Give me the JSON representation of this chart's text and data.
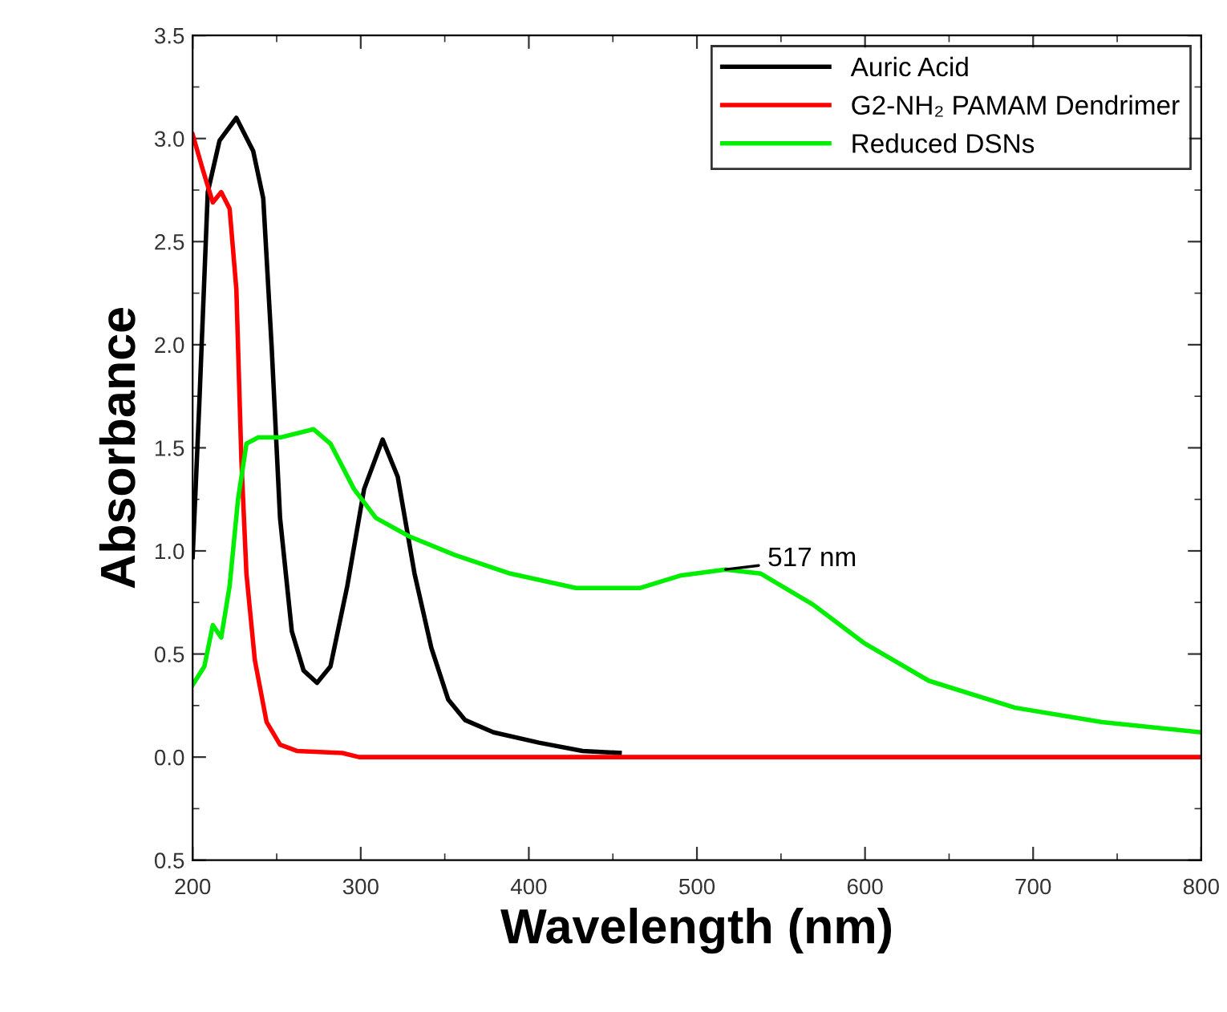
{
  "chart_data": {
    "type": "line",
    "xlabel": "Wavelength (nm)",
    "ylabel": "Absorbance",
    "xlim": [
      200,
      800
    ],
    "xticks": [
      200,
      300,
      400,
      500,
      600,
      700,
      800
    ],
    "ylim": [
      -0.5,
      3.5
    ],
    "yticks": [
      {
        "value": -0.5,
        "label": "0.5"
      },
      {
        "value": 0.0,
        "label": "0.0"
      },
      {
        "value": 0.5,
        "label": "0.5"
      },
      {
        "value": 1.0,
        "label": "1.0"
      },
      {
        "value": 1.5,
        "label": "1.5"
      },
      {
        "value": 2.0,
        "label": "2.0"
      },
      {
        "value": 2.5,
        "label": "2.5"
      },
      {
        "value": 3.0,
        "label": "3.0"
      },
      {
        "value": 3.5,
        "label": "3.5"
      }
    ],
    "grid": false,
    "legend": "top right",
    "marker": "none",
    "line_style": "solid",
    "annotations": [
      {
        "text": "517 nm",
        "x": 517,
        "y": 0.91
      }
    ],
    "series": [
      {
        "name": "Auric Acid",
        "color": "#000000",
        "x": [
          200,
          204,
          209,
          216,
          226,
          236,
          242,
          247,
          252,
          259,
          266,
          274,
          282,
          292,
          302,
          313,
          322,
          332,
          342,
          352,
          362,
          379,
          406,
          432,
          454
        ],
        "values": [
          0.97,
          1.72,
          2.74,
          2.99,
          3.1,
          2.94,
          2.71,
          1.99,
          1.16,
          0.61,
          0.42,
          0.36,
          0.44,
          0.83,
          1.3,
          1.54,
          1.36,
          0.89,
          0.53,
          0.28,
          0.18,
          0.12,
          0.07,
          0.03,
          0.02
        ]
      },
      {
        "name": "G2-NH₂ PAMAM Dendrimer",
        "color": "#ff0000",
        "x": [
          200,
          206,
          212,
          217,
          222,
          226,
          229,
          232,
          237,
          244,
          252,
          262,
          289,
          299,
          800
        ],
        "values": [
          3.02,
          2.85,
          2.69,
          2.74,
          2.66,
          2.27,
          1.44,
          0.89,
          0.47,
          0.17,
          0.06,
          0.03,
          0.02,
          0.0,
          0.0
        ]
      },
      {
        "name": "Reduced DSNs",
        "color": "#00ee00",
        "x": [
          200,
          207,
          212,
          217,
          222,
          227,
          232,
          239,
          252,
          272,
          282,
          296,
          309,
          329,
          356,
          389,
          428,
          466,
          490,
          517,
          538,
          569,
          600,
          638,
          689,
          741,
          800
        ],
        "values": [
          0.35,
          0.44,
          0.64,
          0.58,
          0.83,
          1.25,
          1.52,
          1.55,
          1.55,
          1.59,
          1.52,
          1.3,
          1.16,
          1.07,
          0.98,
          0.89,
          0.82,
          0.82,
          0.88,
          0.91,
          0.89,
          0.74,
          0.55,
          0.37,
          0.24,
          0.17,
          0.12
        ]
      }
    ]
  }
}
